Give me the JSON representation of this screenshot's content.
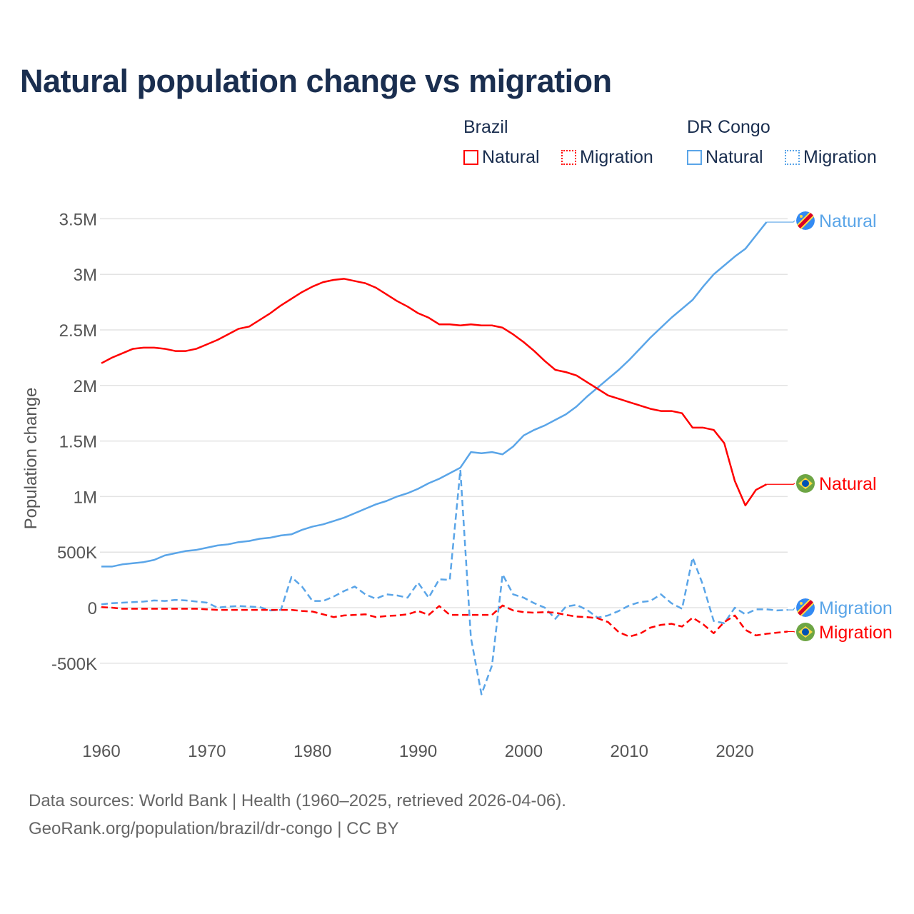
{
  "title": "Natural population change vs migration",
  "legend": {
    "groups": [
      {
        "name": "Brazil",
        "color": "#ff0000",
        "items": [
          "Natural",
          "Migration"
        ]
      },
      {
        "name": "DR Congo",
        "color": "#5aa5e8",
        "items": [
          "Natural",
          "Migration"
        ]
      }
    ]
  },
  "footer": {
    "line1": "Data sources: World Bank | Health (1960–2025, retrieved 2026-04-06).",
    "line2": "GeoRank.org/population/brazil/dr-congo | CC BY"
  },
  "chart_data": {
    "type": "line",
    "title": "Natural population change vs migration",
    "xlabel": "",
    "ylabel": "Population change",
    "xlim": [
      1960,
      2025
    ],
    "ylim": [
      -1000000,
      3500000
    ],
    "x_ticks": [
      1960,
      1970,
      1980,
      1990,
      2000,
      2010,
      2020
    ],
    "x_tick_labels": [
      "1960",
      "1970",
      "1980",
      "1990",
      "2000",
      "2010",
      "2020"
    ],
    "y_ticks": [
      -500000,
      0,
      500000,
      1000000,
      1500000,
      2000000,
      2500000,
      3000000,
      3500000
    ],
    "y_tick_labels": [
      "-500K",
      "0",
      "500K",
      "1M",
      "1.5M",
      "2M",
      "2.5M",
      "3M",
      "3.5M"
    ],
    "grid": true,
    "legend_position": "top-right",
    "start_year": 1960,
    "series": [
      {
        "name": "DR Congo Natural",
        "label": "Natural",
        "country": "DR Congo",
        "color": "#5aa5e8",
        "dash": false,
        "values_millions": [
          0.37,
          0.37,
          0.39,
          0.4,
          0.41,
          0.43,
          0.47,
          0.49,
          0.51,
          0.52,
          0.54,
          0.56,
          0.57,
          0.59,
          0.6,
          0.62,
          0.63,
          0.65,
          0.66,
          0.7,
          0.73,
          0.75,
          0.78,
          0.81,
          0.85,
          0.89,
          0.93,
          0.96,
          1.0,
          1.03,
          1.07,
          1.12,
          1.16,
          1.21,
          1.26,
          1.4,
          1.39,
          1.4,
          1.38,
          1.45,
          1.55,
          1.6,
          1.64,
          1.69,
          1.74,
          1.81,
          1.9,
          1.98,
          2.06,
          2.14,
          2.23,
          2.33,
          2.43,
          2.52,
          2.61,
          2.69,
          2.77,
          2.89,
          3.0,
          3.08,
          3.16,
          3.23,
          3.35,
          3.47
        ]
      },
      {
        "name": "Brazil Natural",
        "label": "Natural",
        "country": "Brazil",
        "color": "#ff0000",
        "dash": false,
        "values_millions": [
          2.2,
          2.25,
          2.29,
          2.33,
          2.34,
          2.34,
          2.33,
          2.31,
          2.31,
          2.33,
          2.37,
          2.41,
          2.46,
          2.51,
          2.53,
          2.59,
          2.65,
          2.72,
          2.78,
          2.84,
          2.89,
          2.93,
          2.95,
          2.96,
          2.94,
          2.92,
          2.88,
          2.82,
          2.76,
          2.71,
          2.65,
          2.61,
          2.55,
          2.55,
          2.54,
          2.55,
          2.54,
          2.54,
          2.52,
          2.46,
          2.39,
          2.31,
          2.22,
          2.14,
          2.12,
          2.09,
          2.03,
          1.97,
          1.91,
          1.88,
          1.85,
          1.82,
          1.79,
          1.77,
          1.77,
          1.75,
          1.62,
          1.62,
          1.6,
          1.48,
          1.14,
          0.92,
          1.06,
          1.11
        ]
      },
      {
        "name": "DR Congo Migration",
        "label": "Migration",
        "country": "DR Congo",
        "color": "#5aa5e8",
        "dash": true,
        "values_millions": [
          0.03,
          0.04,
          0.045,
          0.05,
          0.055,
          0.065,
          0.06,
          0.07,
          0.065,
          0.055,
          0.045,
          0.0,
          0.01,
          0.015,
          0.01,
          0.005,
          -0.025,
          -0.02,
          0.275,
          0.19,
          0.06,
          0.06,
          0.1,
          0.15,
          0.19,
          0.12,
          0.08,
          0.12,
          0.11,
          0.09,
          0.225,
          0.09,
          0.255,
          0.25,
          1.24,
          -0.27,
          -0.78,
          -0.52,
          0.3,
          0.12,
          0.09,
          0.04,
          0.0,
          -0.1,
          0.01,
          0.025,
          -0.02,
          -0.09,
          -0.07,
          -0.03,
          0.02,
          0.05,
          0.06,
          0.12,
          0.04,
          -0.01,
          0.45,
          0.2,
          -0.12,
          -0.14,
          0.0,
          -0.06,
          -0.015,
          -0.015,
          -0.025,
          -0.02
        ]
      },
      {
        "name": "Brazil Migration",
        "label": "Migration",
        "country": "Brazil",
        "color": "#ff0000",
        "dash": true,
        "values_millions": [
          0.005,
          0.0,
          -0.01,
          -0.01,
          -0.01,
          -0.01,
          -0.01,
          -0.01,
          -0.01,
          -0.01,
          -0.015,
          -0.02,
          -0.02,
          -0.02,
          -0.02,
          -0.02,
          -0.02,
          -0.02,
          -0.02,
          -0.03,
          -0.035,
          -0.06,
          -0.085,
          -0.07,
          -0.065,
          -0.06,
          -0.085,
          -0.075,
          -0.07,
          -0.06,
          -0.03,
          -0.065,
          0.015,
          -0.065,
          -0.065,
          -0.065,
          -0.065,
          -0.065,
          0.02,
          -0.025,
          -0.04,
          -0.045,
          -0.04,
          -0.045,
          -0.065,
          -0.08,
          -0.085,
          -0.095,
          -0.13,
          -0.22,
          -0.26,
          -0.235,
          -0.18,
          -0.155,
          -0.145,
          -0.17,
          -0.09,
          -0.15,
          -0.23,
          -0.13,
          -0.07,
          -0.2,
          -0.25,
          -0.235,
          -0.225,
          -0.215
        ]
      }
    ]
  }
}
